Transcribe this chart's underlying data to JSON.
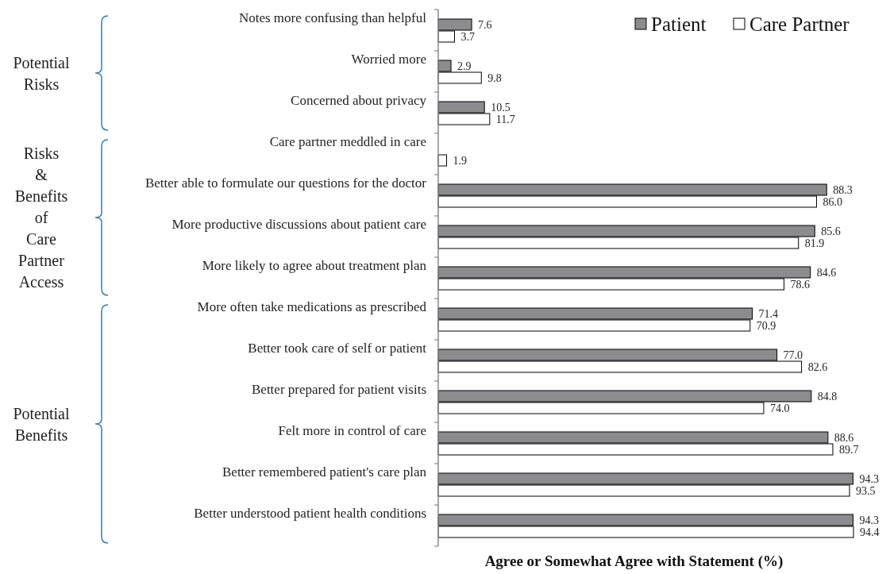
{
  "chart_data": {
    "type": "bar",
    "orientation": "horizontal",
    "xlabel": "Agree or Somewhat Agree with Statement (%)",
    "categories": [
      "Notes more confusing than helpful",
      "Worried more",
      "Concerned about privacy",
      "Care partner meddled in care",
      "Better able to formulate our questions for the doctor",
      "More productive discussions about patient care",
      "More likely to agree about treatment plan",
      "More often take medications as prescribed",
      "Better took care of self or patient",
      "Better prepared for patient visits",
      "Felt more in control of care",
      "Better remembered patient's care plan",
      "Better understood patient health conditions"
    ],
    "series": [
      {
        "name": "Patient",
        "color": "#8c8c90",
        "values": [
          7.6,
          2.9,
          10.5,
          null,
          88.3,
          85.6,
          84.6,
          71.4,
          77.0,
          84.8,
          88.6,
          94.3,
          94.3
        ],
        "value_labels": [
          "7.6",
          "2.9",
          "10.5",
          null,
          "88.3",
          "85.6",
          "84.6",
          "71.4",
          "77.0",
          "84.8",
          "88.6",
          "94.3",
          "94.3"
        ]
      },
      {
        "name": "Care Partner",
        "color": "#ffffff",
        "values": [
          3.7,
          9.8,
          11.7,
          1.9,
          86.0,
          81.9,
          78.6,
          70.9,
          82.6,
          74.0,
          89.7,
          93.5,
          94.4
        ],
        "value_labels": [
          "3.7",
          "9.8",
          "11.7",
          "1.9",
          "86.0",
          "81.9",
          "78.6",
          "70.9",
          "82.6",
          "74.0",
          "89.7",
          "93.5",
          "94.4"
        ]
      }
    ],
    "tick_labels": "y",
    "legend": "top right",
    "annotations": [
      "Potential Risks",
      "Risks & Benefits of Care Partner Access",
      "Potential Benefits"
    ]
  }
}
